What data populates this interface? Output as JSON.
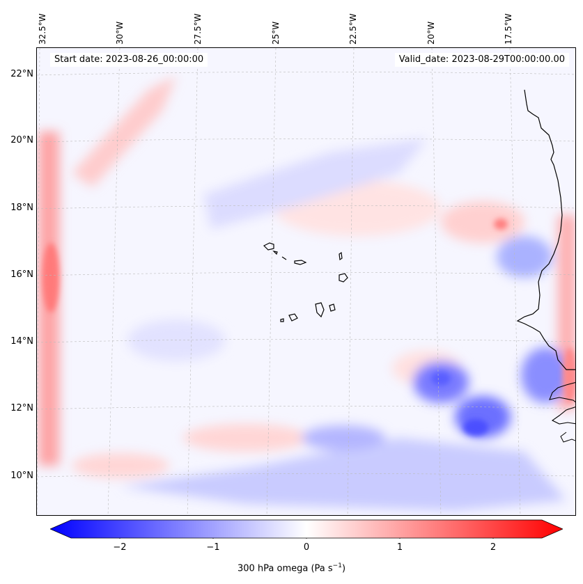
{
  "header": {
    "start_date": "Start date: 2023-08-26_00:00:00",
    "valid_date": "Valid_date: 2023-08-29T00:00:00.00"
  },
  "map": {
    "variable": "300 hPa omega",
    "lon_labels": [
      "32.5°W",
      "30°W",
      "27.5°W",
      "25°W",
      "22.5°W",
      "20°W",
      "17.5°W"
    ],
    "lat_labels": [
      "22°N",
      "20°N",
      "18°N",
      "16°N",
      "14°N",
      "12°N",
      "10°N"
    ],
    "extent": {
      "lon": [
        -32.8,
        -15.8
      ],
      "lat": [
        8.8,
        22.8
      ]
    },
    "gridlines": true
  },
  "colorbar": {
    "label_main": "300 hPa omega (Pa s",
    "label_sup": "−1",
    "label_end": ")",
    "ticks": [
      "−2",
      "−1",
      "0",
      "1",
      "2"
    ],
    "range": [
      -2.75,
      2.75
    ],
    "colormap": "bwr",
    "colors": {
      "negative": "#0000ff",
      "zero": "#ffffff",
      "positive": "#ff0000"
    }
  }
}
